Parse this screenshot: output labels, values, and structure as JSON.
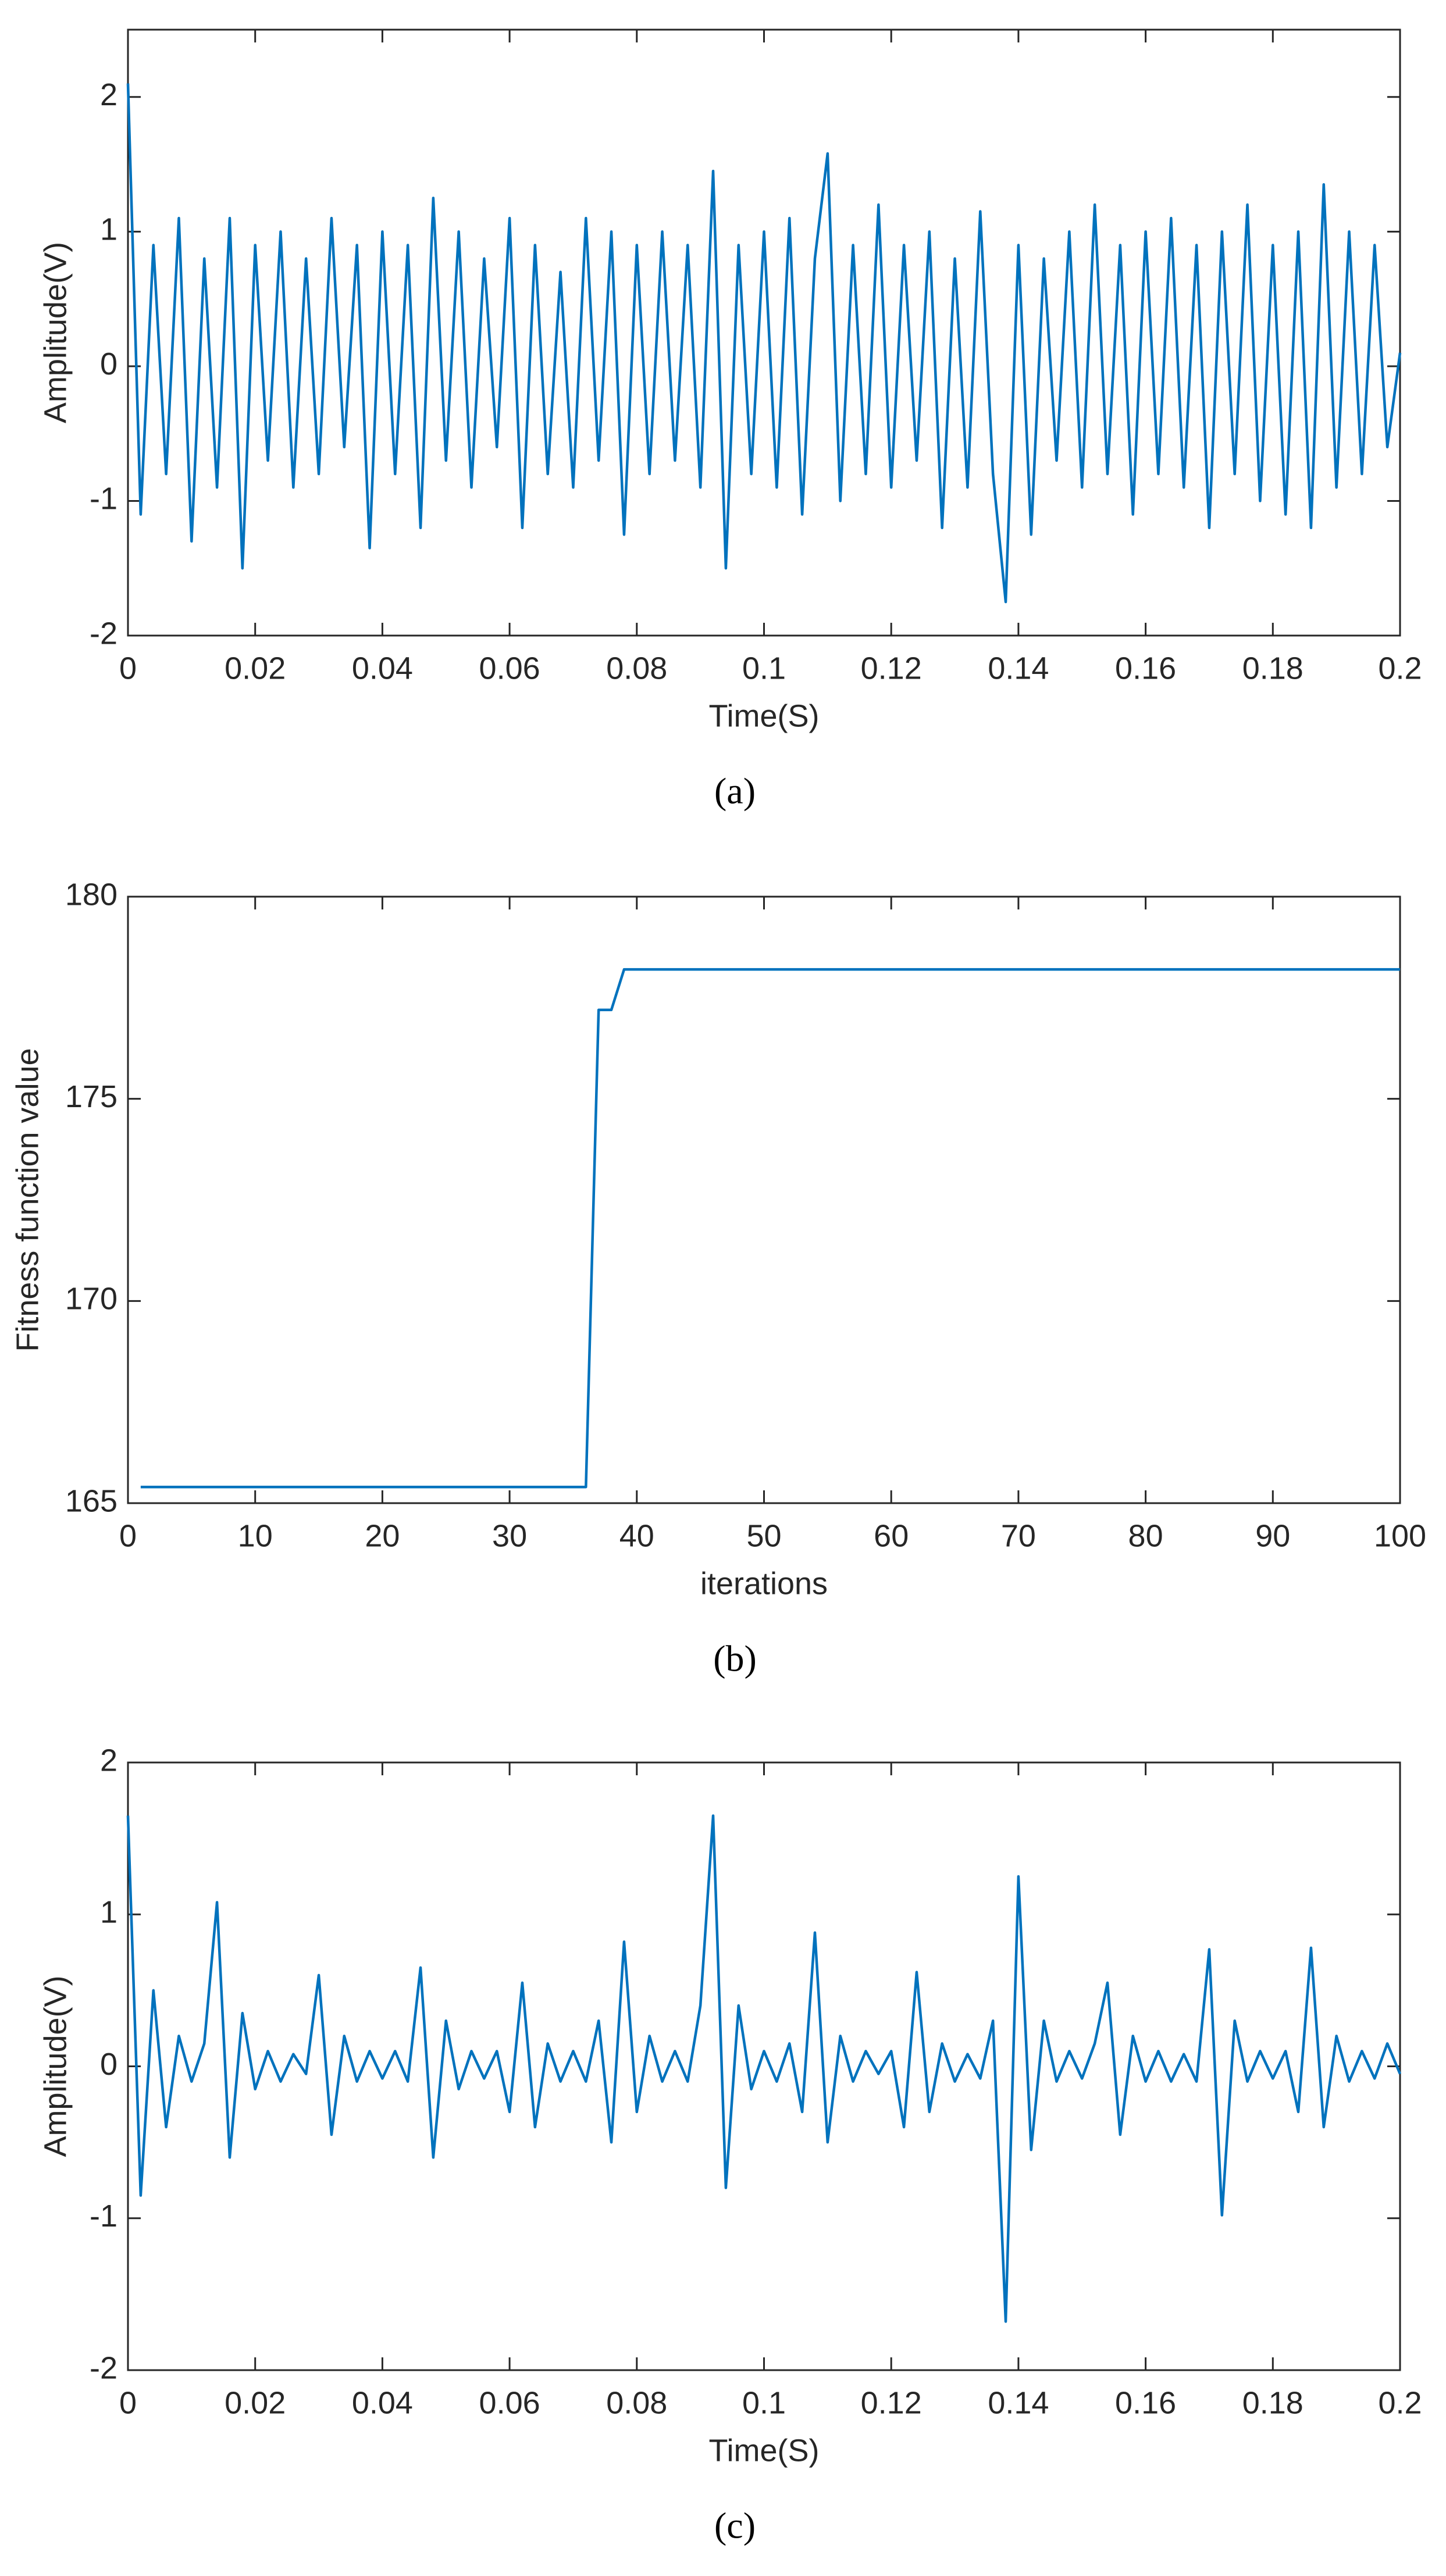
{
  "chart_data": [
    {
      "type": "line",
      "caption": "(a)",
      "xlabel": "Time(S)",
      "ylabel": "Amplitude(V)",
      "xlim": [
        0,
        0.2
      ],
      "ylim": [
        -2,
        2.5
      ],
      "xticks": [
        0,
        0.02,
        0.04,
        0.06,
        0.08,
        0.1,
        0.12,
        0.14,
        0.16,
        0.18,
        0.2
      ],
      "yticks": [
        -2,
        -1,
        0,
        1,
        2
      ],
      "x": [
        0,
        0.002,
        0.004,
        0.006,
        0.008,
        0.01,
        0.012,
        0.014,
        0.016,
        0.018,
        0.02,
        0.022,
        0.024,
        0.026,
        0.028,
        0.03,
        0.032,
        0.034,
        0.036,
        0.038,
        0.04,
        0.042,
        0.044,
        0.046,
        0.048,
        0.05,
        0.052,
        0.054,
        0.056,
        0.058,
        0.06,
        0.062,
        0.064,
        0.066,
        0.068,
        0.07,
        0.072,
        0.074,
        0.076,
        0.078,
        0.08,
        0.082,
        0.084,
        0.086,
        0.088,
        0.09,
        0.092,
        0.094,
        0.096,
        0.098,
        0.1,
        0.102,
        0.104,
        0.106,
        0.108,
        0.11,
        0.112,
        0.114,
        0.116,
        0.118,
        0.12,
        0.122,
        0.124,
        0.126,
        0.128,
        0.13,
        0.132,
        0.134,
        0.136,
        0.138,
        0.14,
        0.142,
        0.144,
        0.146,
        0.148,
        0.15,
        0.152,
        0.154,
        0.156,
        0.158,
        0.16,
        0.162,
        0.164,
        0.166,
        0.168,
        0.17,
        0.172,
        0.174,
        0.176,
        0.178,
        0.18,
        0.182,
        0.184,
        0.186,
        0.188,
        0.19,
        0.192,
        0.194,
        0.196,
        0.198,
        0.2
      ],
      "series": [
        {
          "color": "#0072bd",
          "values": [
            2.1,
            -1.1,
            0.9,
            -0.8,
            1.1,
            -1.3,
            0.8,
            -0.9,
            1.1,
            -1.5,
            0.9,
            -0.7,
            1.0,
            -0.9,
            0.8,
            -0.8,
            1.1,
            -0.6,
            0.9,
            -1.35,
            1.0,
            -0.8,
            0.9,
            -1.2,
            1.25,
            -0.7,
            1.0,
            -0.9,
            0.8,
            -0.6,
            1.1,
            -1.2,
            0.9,
            -0.8,
            0.7,
            -0.9,
            1.1,
            -0.7,
            1.0,
            -1.25,
            0.9,
            -0.8,
            1.0,
            -0.7,
            0.9,
            -0.9,
            1.45,
            -1.5,
            0.9,
            -0.8,
            1.0,
            -0.9,
            1.1,
            -1.1,
            0.8,
            1.58,
            -1.0,
            0.9,
            -0.8,
            1.2,
            -0.9,
            0.9,
            -0.7,
            1.0,
            -1.2,
            0.8,
            -0.9,
            1.15,
            -0.8,
            -1.75,
            0.9,
            -1.25,
            0.8,
            -0.7,
            1.0,
            -0.9,
            1.2,
            -0.8,
            0.9,
            -1.1,
            1.0,
            -0.8,
            1.1,
            -0.9,
            0.9,
            -1.2,
            1.0,
            -0.8,
            1.2,
            -1.0,
            0.9,
            -1.1,
            1.0,
            -1.2,
            1.35,
            -0.9,
            1.0,
            -0.8,
            0.9,
            -0.6,
            0.1
          ]
        }
      ]
    },
    {
      "type": "line",
      "caption": "(b)",
      "xlabel": "iterations",
      "ylabel": "Fitness function value",
      "xlim": [
        0,
        100
      ],
      "ylim": [
        165,
        180
      ],
      "xticks": [
        0,
        10,
        20,
        30,
        40,
        50,
        60,
        70,
        80,
        90,
        100
      ],
      "yticks": [
        165,
        170,
        175,
        180
      ],
      "x": [
        1,
        36,
        37,
        38,
        39,
        100
      ],
      "series": [
        {
          "color": "#0072bd",
          "values": [
            165.4,
            165.4,
            177.2,
            177.2,
            178.2,
            178.2
          ]
        }
      ]
    },
    {
      "type": "line",
      "caption": "(c)",
      "xlabel": "Time(S)",
      "ylabel": "Amplitude(V)",
      "xlim": [
        0,
        0.2
      ],
      "ylim": [
        -2,
        2
      ],
      "xticks": [
        0,
        0.02,
        0.04,
        0.06,
        0.08,
        0.1,
        0.12,
        0.14,
        0.16,
        0.18,
        0.2
      ],
      "yticks": [
        -2,
        -1,
        0,
        1,
        2
      ],
      "x": [
        0,
        0.002,
        0.004,
        0.006,
        0.008,
        0.01,
        0.012,
        0.014,
        0.016,
        0.018,
        0.02,
        0.022,
        0.024,
        0.026,
        0.028,
        0.03,
        0.032,
        0.034,
        0.036,
        0.038,
        0.04,
        0.042,
        0.044,
        0.046,
        0.048,
        0.05,
        0.052,
        0.054,
        0.056,
        0.058,
        0.06,
        0.062,
        0.064,
        0.066,
        0.068,
        0.07,
        0.072,
        0.074,
        0.076,
        0.078,
        0.08,
        0.082,
        0.084,
        0.086,
        0.088,
        0.09,
        0.092,
        0.094,
        0.096,
        0.098,
        0.1,
        0.102,
        0.104,
        0.106,
        0.108,
        0.11,
        0.112,
        0.114,
        0.116,
        0.118,
        0.12,
        0.122,
        0.124,
        0.126,
        0.128,
        0.13,
        0.132,
        0.134,
        0.136,
        0.138,
        0.14,
        0.142,
        0.144,
        0.146,
        0.148,
        0.15,
        0.152,
        0.154,
        0.156,
        0.158,
        0.16,
        0.162,
        0.164,
        0.166,
        0.168,
        0.17,
        0.172,
        0.174,
        0.176,
        0.178,
        0.18,
        0.182,
        0.184,
        0.186,
        0.188,
        0.19,
        0.192,
        0.194,
        0.196,
        0.198,
        0.2
      ],
      "series": [
        {
          "color": "#0072bd",
          "values": [
            1.65,
            -0.85,
            0.5,
            -0.4,
            0.2,
            -0.1,
            0.15,
            1.08,
            -0.6,
            0.35,
            -0.15,
            0.1,
            -0.1,
            0.08,
            -0.05,
            0.6,
            -0.45,
            0.2,
            -0.1,
            0.1,
            -0.08,
            0.1,
            -0.1,
            0.65,
            -0.6,
            0.3,
            -0.15,
            0.1,
            -0.08,
            0.1,
            -0.3,
            0.55,
            -0.4,
            0.15,
            -0.1,
            0.1,
            -0.1,
            0.3,
            -0.5,
            0.82,
            -0.3,
            0.2,
            -0.1,
            0.1,
            -0.1,
            0.4,
            1.65,
            -0.8,
            0.4,
            -0.15,
            0.1,
            -0.1,
            0.15,
            -0.3,
            0.88,
            -0.5,
            0.2,
            -0.1,
            0.1,
            -0.05,
            0.1,
            -0.4,
            0.62,
            -0.3,
            0.15,
            -0.1,
            0.08,
            -0.08,
            0.3,
            -1.68,
            1.25,
            -0.55,
            0.3,
            -0.1,
            0.1,
            -0.08,
            0.15,
            0.55,
            -0.45,
            0.2,
            -0.1,
            0.1,
            -0.1,
            0.08,
            -0.1,
            0.77,
            -0.98,
            0.3,
            -0.1,
            0.1,
            -0.08,
            0.1,
            -0.3,
            0.78,
            -0.4,
            0.2,
            -0.1,
            0.1,
            -0.08,
            0.15,
            -0.05
          ]
        }
      ]
    }
  ]
}
